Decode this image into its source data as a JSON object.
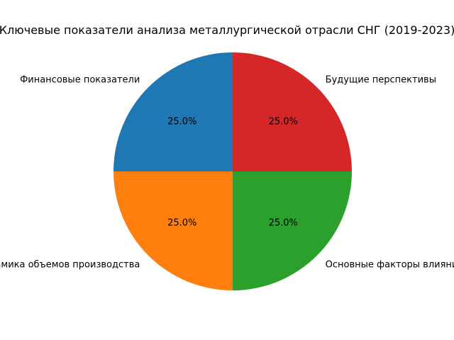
{
  "chart_data": {
    "type": "pie",
    "title": "Ключевые показатели анализа металлургической отрасли СНГ (2019-2023)",
    "slices": [
      {
        "label": "Финансовые показатели",
        "value": 25.0,
        "pct_label": "25.0%",
        "color": "#1f77b4"
      },
      {
        "label": "Динамика объемов производства",
        "value": 25.0,
        "pct_label": "25.0%",
        "color": "#ff7f0e"
      },
      {
        "label": "Основные факторы влияния",
        "value": 25.0,
        "pct_label": "25.0%",
        "color": "#2ca02c"
      },
      {
        "label": "Будущие перспективы",
        "value": 25.0,
        "pct_label": "25.0%",
        "color": "#d62728"
      }
    ],
    "start_angle": 90,
    "direction": "counterclockwise",
    "legend": "none"
  }
}
